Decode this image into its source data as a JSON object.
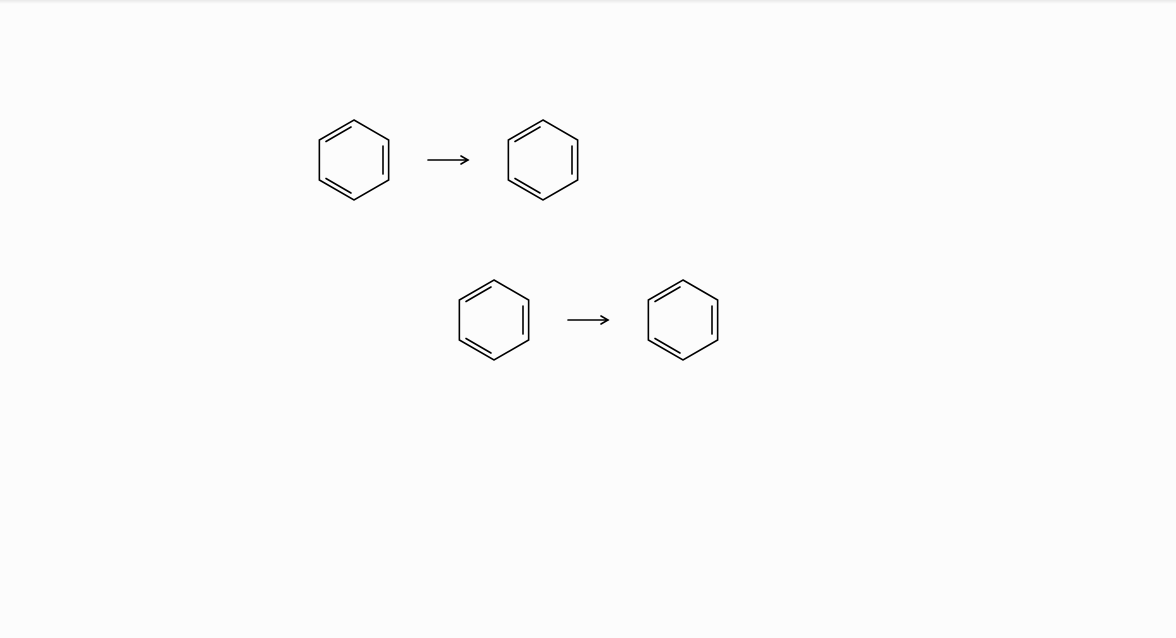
{
  "canvas": {
    "background": "#fcfcfc",
    "stroke_color": "#000000"
  },
  "reactions": [
    {
      "reactant": {
        "structure": "benzene-ring"
      },
      "arrow": {
        "icon": "right-arrow-icon"
      },
      "product": {
        "structure": "benzene-ring"
      }
    },
    {
      "reactant": {
        "structure": "benzene-ring"
      },
      "arrow": {
        "icon": "right-arrow-icon"
      },
      "product": {
        "structure": "benzene-ring"
      }
    }
  ]
}
